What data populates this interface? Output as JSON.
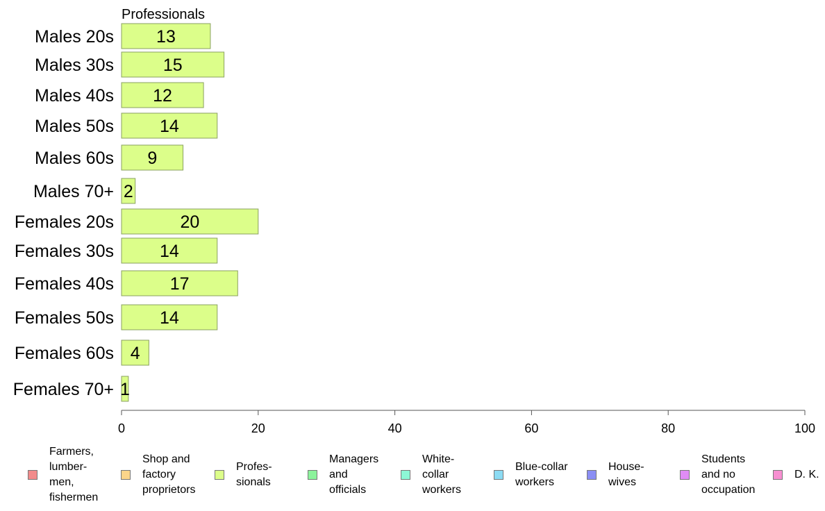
{
  "chart_data": {
    "type": "bar",
    "orientation": "horizontal",
    "title": "Professionals",
    "categories": [
      "Males 20s",
      "Males 30s",
      "Males 40s",
      "Males 50s",
      "Males 60s",
      "Males 70+",
      "Females 20s",
      "Females 30s",
      "Females 40s",
      "Females 50s",
      "Females 60s",
      "Females 70+"
    ],
    "values": [
      13,
      15,
      12,
      14,
      9,
      2,
      20,
      14,
      17,
      14,
      4,
      1
    ],
    "xlim": [
      0,
      100
    ],
    "xticks": [
      0,
      20,
      40,
      60,
      80,
      100
    ],
    "grid": false,
    "legend_position": "bottom",
    "bar_color": "#dcfe8a",
    "bar_stroke": "#8aa060",
    "legend": [
      {
        "label": "Farmers,\nlumber-\nmen,\nfishermen",
        "color": "#f28b8b"
      },
      {
        "label": "Shop and\nfactory\nproprietors",
        "color": "#fcd58a"
      },
      {
        "label": "Profes-\nsionals",
        "color": "#dcfe8a"
      },
      {
        "label": "Managers\nand\nofficials",
        "color": "#8cf39c"
      },
      {
        "label": "White-\ncollar\nworkers",
        "color": "#8df7d6"
      },
      {
        "label": "Blue-collar\nworkers",
        "color": "#8cdbf3"
      },
      {
        "label": "House-\nwives",
        "color": "#8b8ef4"
      },
      {
        "label": "Students\nand no\noccupation",
        "color": "#e08cf5"
      },
      {
        "label": "D. K.",
        "color": "#f78fd1"
      }
    ]
  }
}
